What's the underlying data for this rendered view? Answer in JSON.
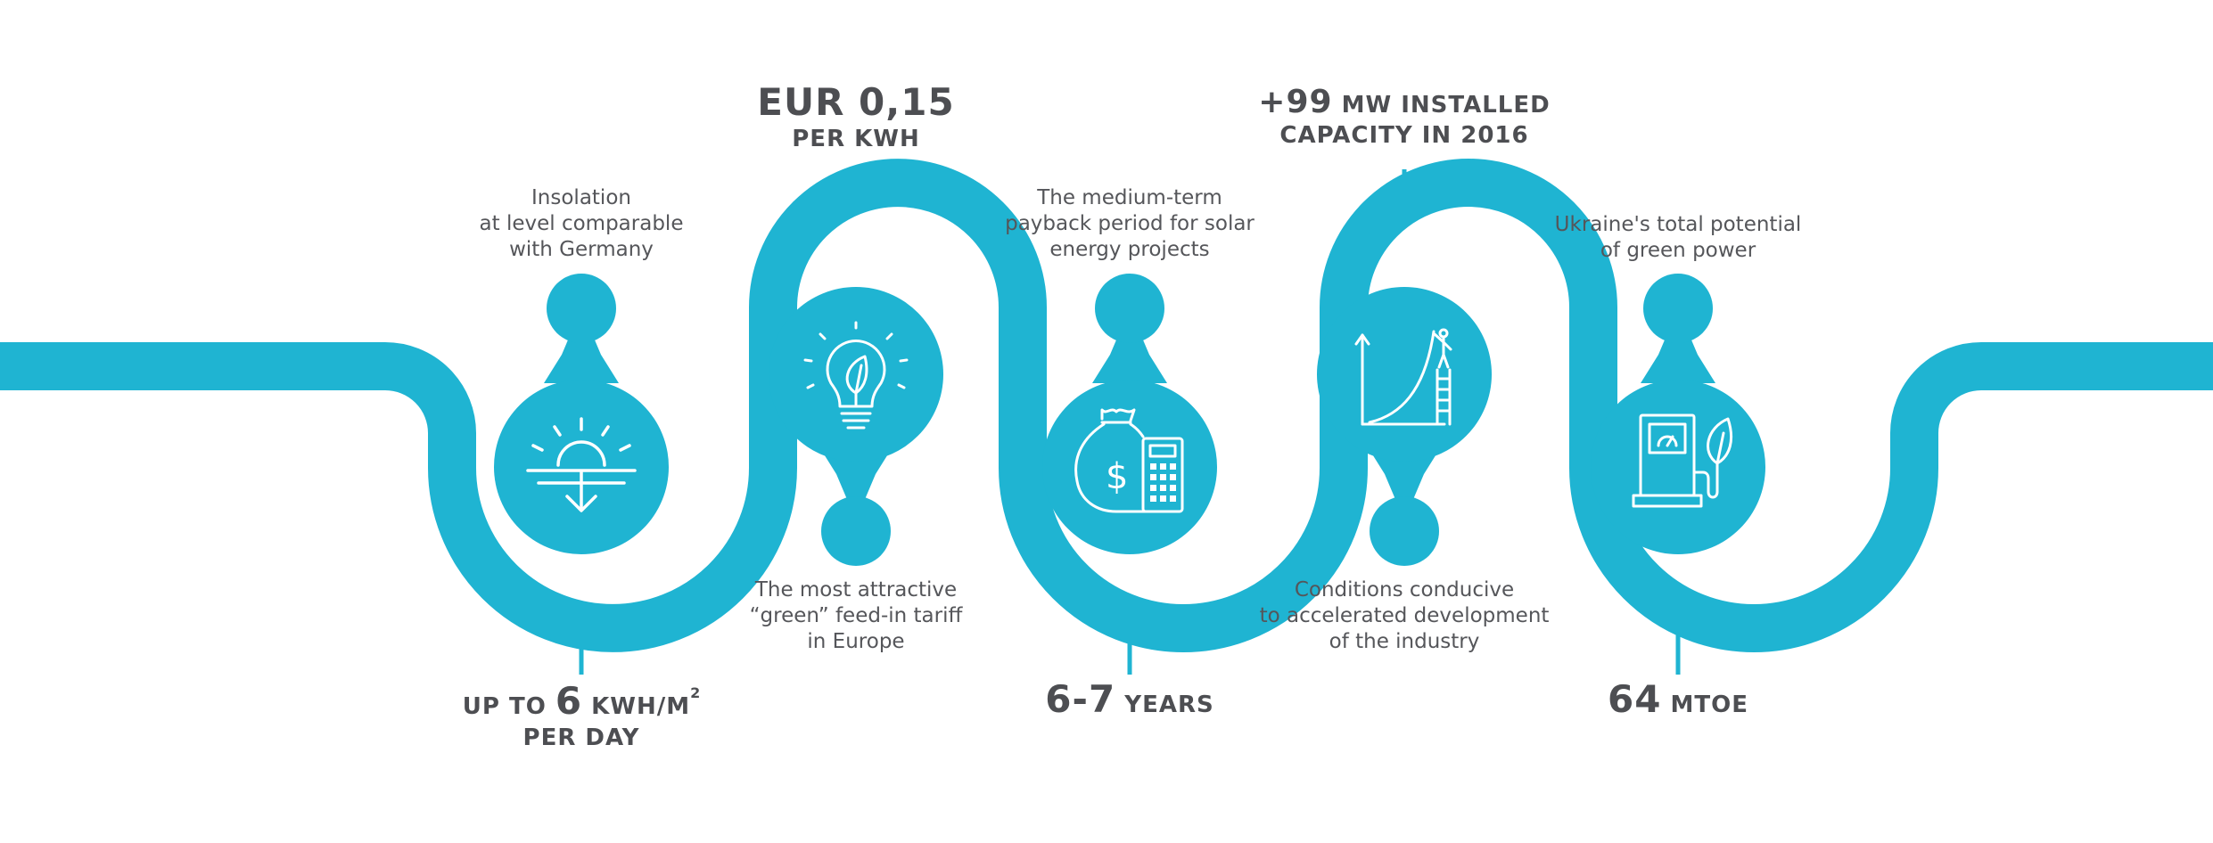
{
  "colors": {
    "accent": "#1fb4d2",
    "text": "#55565a",
    "stat": "#4d4e52",
    "icon": "#ffffff"
  },
  "items": [
    {
      "icon": "sun-horizon-icon",
      "description": [
        "Insolation",
        "at level comparable",
        "with Germany"
      ],
      "stat_big": "6",
      "stat_pre": "UP TO ",
      "stat_post": " KWH/M",
      "stat_sup": "2",
      "stat_line2": "PER DAY"
    },
    {
      "icon": "lightbulb-leaf-icon",
      "description": [
        "The most attractive",
        "“green” feed-in tariff",
        "in Europe"
      ],
      "stat_big": "EUR 0,15",
      "stat_line2": "PER KWH"
    },
    {
      "icon": "money-bag-calculator-icon",
      "description": [
        "The medium-term",
        "payback period for solar",
        "energy projects"
      ],
      "stat_big": "6-7",
      "stat_post": " YEARS"
    },
    {
      "icon": "growth-chart-ladder-icon",
      "description": [
        "Conditions conducive",
        "to accelerated development",
        "of the industry"
      ],
      "stat_big": "+99",
      "stat_post": " MW INSTALLED",
      "stat_line2": "CAPACITY IN 2016"
    },
    {
      "icon": "fuel-pump-leaf-icon",
      "description": [
        "Ukraine's total potential",
        "of green power"
      ],
      "stat_big": "64",
      "stat_post": " MTOE"
    }
  ]
}
